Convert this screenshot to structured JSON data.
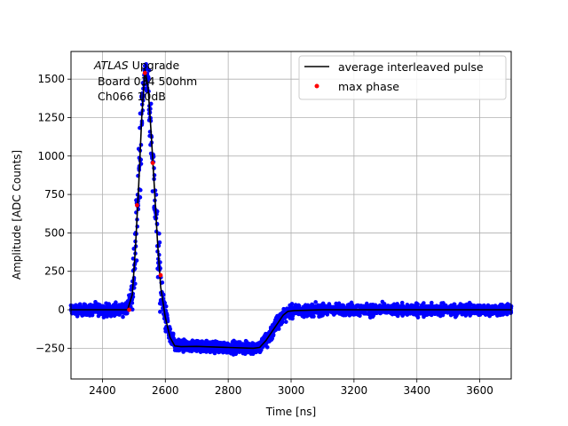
{
  "chart_data": {
    "type": "scatter",
    "xlabel": "Time [ns]",
    "ylabel": "Amplitude [ADC Counts]",
    "xlim": [
      2300,
      3700
    ],
    "ylim": [
      -450,
      1680
    ],
    "grid": true,
    "legend_position": "top-right",
    "x_ticks": [
      2400,
      2600,
      2800,
      3000,
      3200,
      3400,
      3600
    ],
    "y_ticks": [
      -250,
      0,
      250,
      500,
      750,
      1000,
      1250,
      1500
    ],
    "annotation": {
      "italic": "ATLAS",
      "rest": " Upgrade",
      "line2": " Board 034 50ohm",
      "line3": " Ch066 10dB"
    },
    "series": [
      {
        "name": "average interleaved pulse",
        "kind": "line",
        "color": "#000000",
        "x": [
          2300,
          2480,
          2495,
          2505,
          2515,
          2525,
          2535,
          2545,
          2555,
          2565,
          2575,
          2585,
          2600,
          2615,
          2630,
          2650,
          2700,
          2800,
          2880,
          2900,
          2920,
          2940,
          2960,
          2975,
          2990,
          3010,
          3050,
          3100,
          3700
        ],
        "y": [
          0,
          0,
          100,
          400,
          800,
          1250,
          1560,
          1450,
          1150,
          800,
          450,
          150,
          -50,
          -180,
          -235,
          -240,
          -238,
          -245,
          -250,
          -245,
          -200,
          -140,
          -80,
          -35,
          -10,
          -5,
          -3,
          0,
          0
        ]
      },
      {
        "name": "max phase",
        "kind": "points",
        "color": "#ff0000",
        "x": [
          2485,
          2510,
          2535,
          2560,
          2585
        ],
        "y": [
          0,
          680,
          1540,
          955,
          225
        ]
      },
      {
        "name": "",
        "kind": "band",
        "color": "#0000ff",
        "noise": 55
      }
    ]
  }
}
